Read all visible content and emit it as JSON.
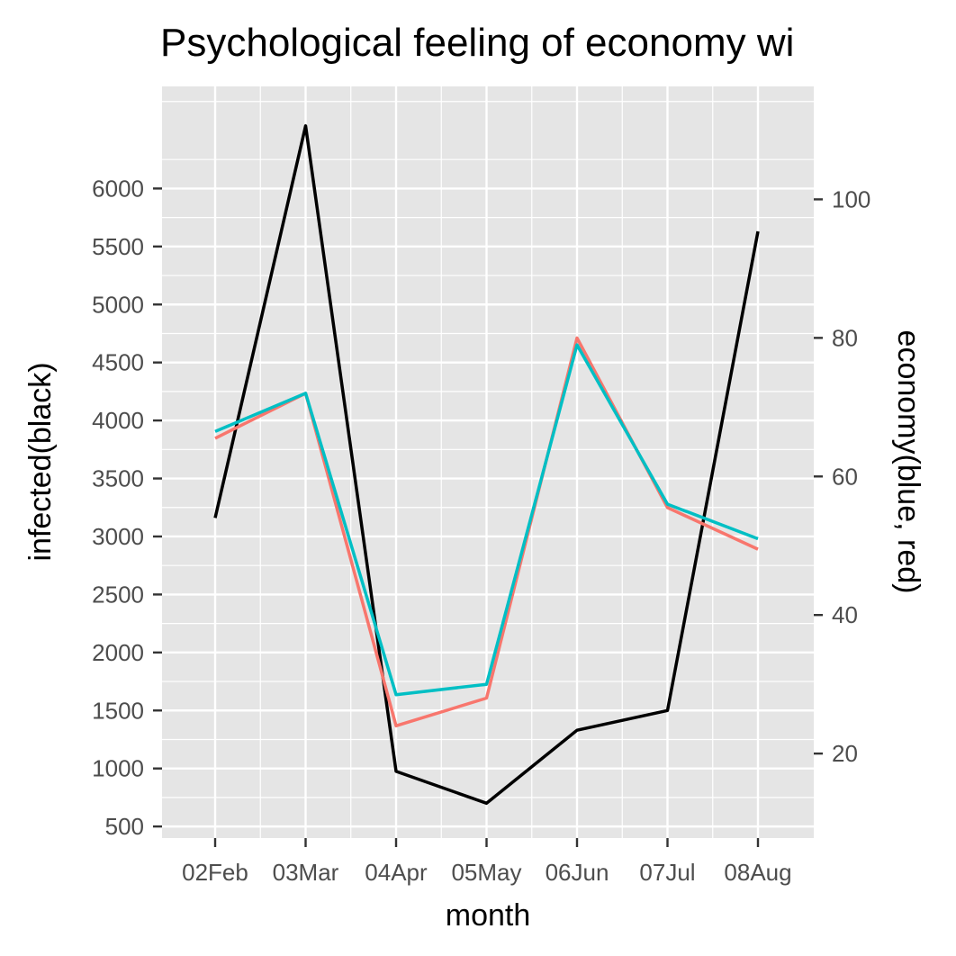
{
  "chart_data": {
    "type": "line",
    "title": "Psychological feeling of economy wi",
    "xlabel": "month",
    "ylabel_left": "infected(black)",
    "ylabel_right": "economy(blue, red)",
    "categories": [
      "02Feb",
      "03Mar",
      "04Apr",
      "05May",
      "06Jun",
      "07Jul",
      "08Aug"
    ],
    "y_left_range": [
      400,
      6880
    ],
    "y_left_ticks": [
      500,
      1000,
      1500,
      2000,
      2500,
      3000,
      3500,
      4000,
      4500,
      5000,
      5500,
      6000
    ],
    "y_right_range": [
      7.8,
      116.3
    ],
    "y_right_ticks": [
      20,
      40,
      60,
      80,
      100
    ],
    "grid": true,
    "series": [
      {
        "axis": "left",
        "color": "#000000",
        "values": [
          3160,
          6540,
          975,
          700,
          1330,
          1500,
          5630
        ]
      },
      {
        "axis": "right",
        "color": "#F8766D",
        "values": [
          65.5,
          72,
          24,
          28,
          80,
          55.5,
          49.5
        ]
      },
      {
        "axis": "right",
        "color": "#00BFC4",
        "values": [
          66.5,
          72,
          28.5,
          30,
          79,
          56,
          51
        ]
      }
    ],
    "colors": {
      "panel": "#E5E5E5",
      "grid": "#FFFFFF",
      "ticks": "#333333"
    }
  }
}
